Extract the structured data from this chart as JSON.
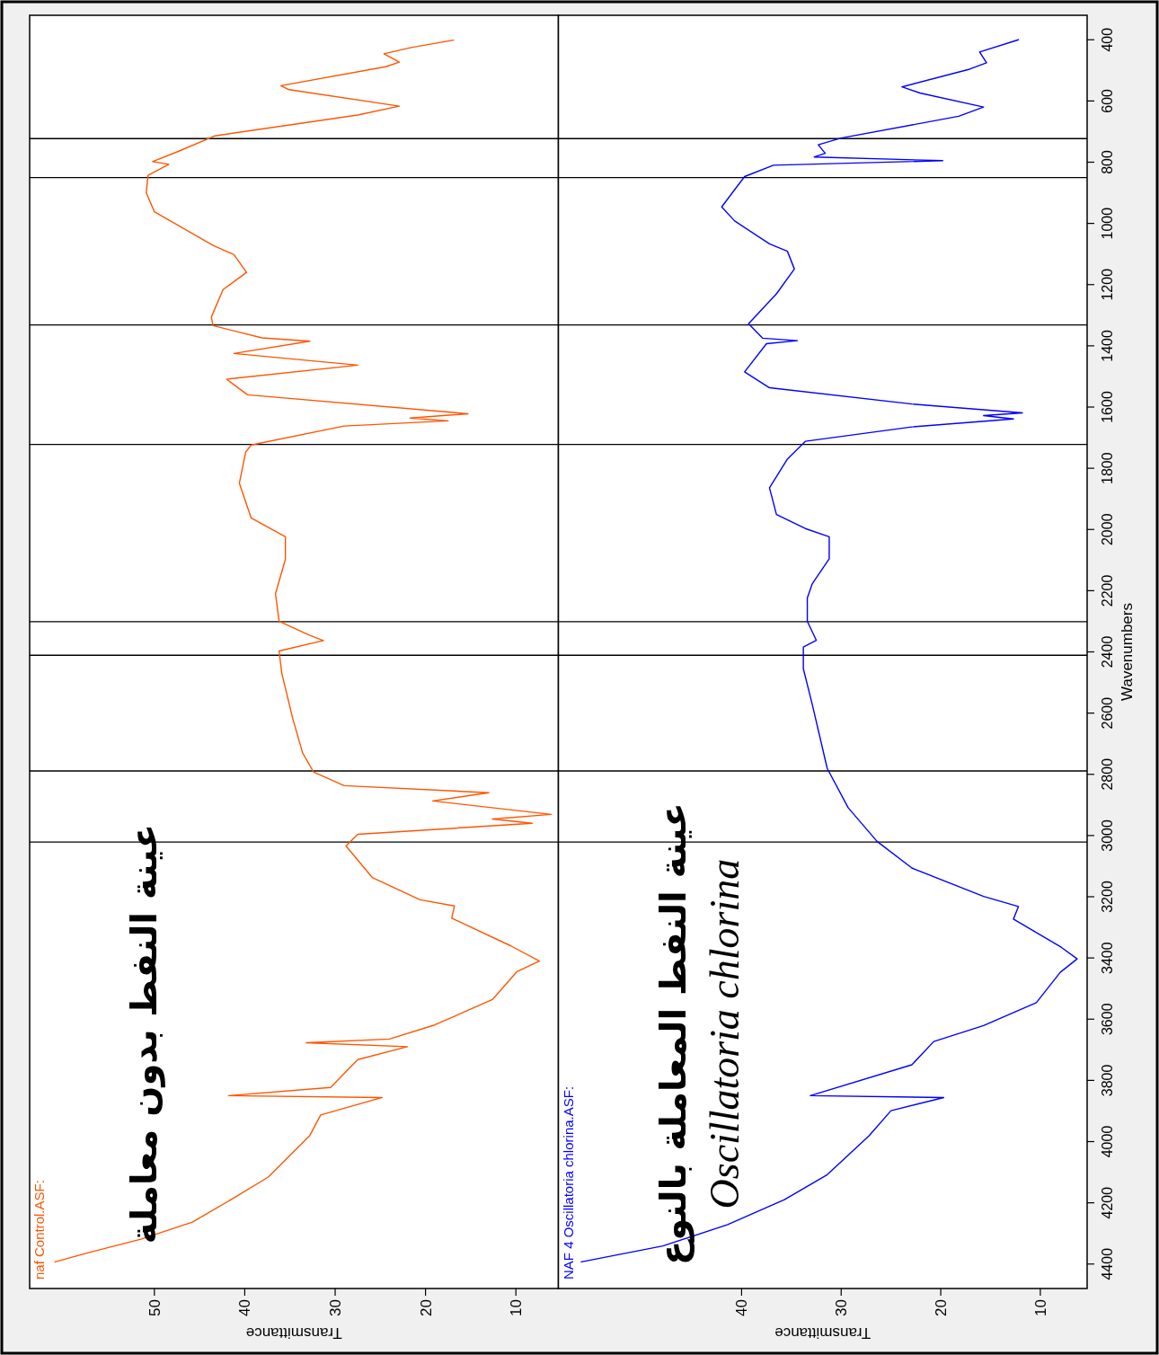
{
  "chart_data": [
    {
      "type": "line",
      "xlabel": "Transmittance",
      "tick_labels": "x",
      "xlim": [
        63.8,
        5.3
      ],
      "xticks": [
        10,
        20,
        30,
        40,
        50
      ],
      "ylim": [
        4480,
        320
      ],
      "annotations": [
        "عينة النفط بدون معاملة"
      ],
      "ref_lines": [
        {
          "axis": "y",
          "value": 723,
          "color": "#000000"
        },
        {
          "axis": "y",
          "value": 850,
          "color": "#000000"
        },
        {
          "axis": "y",
          "value": 1332,
          "color": "#000000"
        },
        {
          "axis": "y",
          "value": 1722,
          "color": "#000000"
        },
        {
          "axis": "y",
          "value": 2301,
          "color": "#000000"
        },
        {
          "axis": "y",
          "value": 2411,
          "color": "#000000"
        },
        {
          "axis": "y",
          "value": 2789,
          "color": "#000000"
        },
        {
          "axis": "y",
          "value": 3021,
          "color": "#000000"
        }
      ],
      "series": [
        {
          "name": "naf Control.ASF:",
          "color": "#ff5500",
          "values": [
            401,
            426,
            446,
            473,
            488,
            550,
            563,
            617,
            646,
            714,
            764,
            798,
            807,
            843,
            900,
            962,
            1072,
            1102,
            1160,
            1216,
            1306,
            1334,
            1374,
            1385,
            1425,
            1463,
            1509,
            1560,
            1622,
            1636,
            1645,
            1662,
            1724,
            1748,
            1849,
            1962,
            2024,
            2097,
            2210,
            2300,
            2346,
            2363,
            2397,
            2470,
            2617,
            2730,
            2792,
            2837,
            2860,
            2887,
            2931,
            2946,
            2960,
            2996,
            3034,
            3137,
            3210,
            3230,
            3270,
            3360,
            3410,
            3445,
            3536,
            3619,
            3665,
            3677,
            3690,
            3732,
            3823,
            3850,
            3856,
            3913,
            3980,
            4116,
            4184,
            4263,
            4319,
            4363,
            4393
          ],
          "x": [
            16.9,
            21.7,
            24.6,
            22.9,
            24.4,
            36.0,
            35.1,
            22.9,
            27.5,
            43.3,
            47.3,
            50.2,
            48.4,
            50.7,
            50.9,
            50.0,
            43.5,
            41.2,
            39.8,
            42.4,
            43.7,
            43.5,
            38.1,
            32.8,
            41.2,
            27.5,
            42.0,
            39.7,
            15.3,
            21.7,
            17.5,
            29.0,
            39.3,
            39.9,
            40.6,
            39.3,
            35.5,
            35.5,
            36.6,
            36.2,
            32.8,
            31.3,
            36.2,
            35.9,
            34.7,
            33.6,
            32.4,
            29.0,
            13.0,
            19.2,
            6.1,
            12.6,
            8.2,
            27.5,
            28.8,
            25.9,
            20.6,
            16.8,
            17.1,
            10.6,
            7.4,
            9.9,
            12.6,
            19.0,
            24.0,
            33.2,
            22.0,
            27.5,
            30.5,
            41.8,
            24.8,
            31.6,
            32.8,
            37.4,
            41.2,
            45.8,
            51.5,
            57.3,
            61.0
          ]
        }
      ]
    },
    {
      "type": "line",
      "xlabel": "Transmittance",
      "ylabel": "Wavenumbers",
      "xlim": [
        58.4,
        5.3
      ],
      "xticks": [
        10,
        20,
        30,
        40
      ],
      "ylim": [
        4480,
        320
      ],
      "yticks": [
        400,
        600,
        800,
        1000,
        1200,
        1400,
        1600,
        1800,
        2000,
        2200,
        2400,
        2600,
        2800,
        3000,
        3200,
        3400,
        3600,
        3800,
        4000,
        4200,
        4400
      ],
      "annotations": [
        "عينة النفط المعاملة بالنوع",
        "Oscillatoria chlorina"
      ],
      "ref_lines": [
        {
          "axis": "y",
          "value": 723,
          "color": "#000000"
        },
        {
          "axis": "y",
          "value": 850,
          "color": "#000000"
        },
        {
          "axis": "y",
          "value": 1332,
          "color": "#000000"
        },
        {
          "axis": "y",
          "value": 1722,
          "color": "#000000"
        },
        {
          "axis": "y",
          "value": 2301,
          "color": "#000000"
        },
        {
          "axis": "y",
          "value": 2411,
          "color": "#000000"
        },
        {
          "axis": "y",
          "value": 2789,
          "color": "#000000"
        },
        {
          "axis": "y",
          "value": 3021,
          "color": "#000000"
        }
      ],
      "series": [
        {
          "name": "NAF 4 Oscillatoria chlorina.ASF:",
          "color": "#0000ff",
          "values": [
            400,
            440,
            475,
            496,
            554,
            574,
            620,
            650,
            721,
            743,
            771,
            783,
            795,
            810,
            847,
            946,
            992,
            1067,
            1091,
            1149,
            1230,
            1328,
            1375,
            1383,
            1393,
            1485,
            1537,
            1590,
            1619,
            1628,
            1639,
            1665,
            1712,
            1770,
            1864,
            1951,
            1997,
            2024,
            2096,
            2177,
            2224,
            2300,
            2362,
            2384,
            2455,
            2572,
            2781,
            2909,
            3019,
            3106,
            3199,
            3232,
            3273,
            3365,
            3403,
            3447,
            3546,
            3621,
            3673,
            3749,
            3850,
            3856,
            3899,
            3981,
            4108,
            4190,
            4271,
            4341,
            4393
          ],
          "x": [
            12.2,
            16.1,
            15.4,
            17.1,
            23.9,
            22.1,
            15.7,
            18.2,
            30.0,
            32.3,
            31.6,
            32.7,
            19.8,
            36.8,
            39.7,
            42.0,
            40.7,
            37.2,
            35.4,
            34.7,
            36.5,
            39.3,
            37.9,
            34.4,
            37.5,
            39.7,
            37.2,
            22.9,
            11.8,
            15.7,
            12.7,
            22.9,
            33.6,
            35.4,
            37.2,
            36.5,
            33.6,
            31.2,
            31.2,
            32.9,
            33.4,
            33.4,
            32.5,
            33.8,
            33.8,
            32.9,
            31.4,
            29.3,
            26.4,
            22.9,
            15.7,
            12.2,
            12.7,
            7.9,
            6.3,
            8.0,
            10.4,
            15.7,
            20.7,
            22.9,
            33.1,
            19.7,
            25.0,
            27.2,
            31.4,
            35.7,
            41.4,
            47.9,
            56.1
          ]
        }
      ]
    }
  ]
}
